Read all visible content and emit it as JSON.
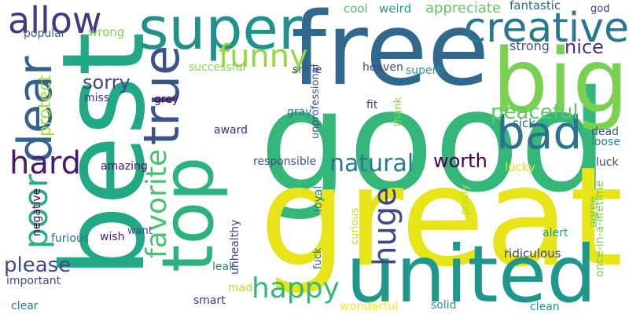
{
  "words": [
    {
      "text": "good",
      "color": "#35b779"
    },
    {
      "text": "great",
      "color": "#e7e419"
    },
    {
      "text": "best",
      "color": "#22a884"
    },
    {
      "text": "free",
      "color": "#31688e"
    },
    {
      "text": "big",
      "color": "#7ad151"
    },
    {
      "text": "top",
      "color": "#2db27d"
    },
    {
      "text": "united",
      "color": "#1f988b"
    },
    {
      "text": "super",
      "color": "#21918c"
    },
    {
      "text": "creative",
      "color": "#2a788e"
    },
    {
      "text": "true",
      "color": "#3b528b"
    },
    {
      "text": "dear",
      "color": "#33638d"
    },
    {
      "text": "allow",
      "color": "#453781"
    },
    {
      "text": "funny",
      "color": "#95d840"
    },
    {
      "text": "bad",
      "color": "#2c728e"
    },
    {
      "text": "hard",
      "color": "#481a6c"
    },
    {
      "text": "poor",
      "color": "#28ae80"
    },
    {
      "text": "favorite",
      "color": "#4ac16d"
    },
    {
      "text": "huge",
      "color": "#3e4989"
    },
    {
      "text": "natural",
      "color": "#2a788e"
    },
    {
      "text": "happy",
      "color": "#35b779"
    },
    {
      "text": "peaceful",
      "color": "#5ec962"
    },
    {
      "text": "please",
      "color": "#3e4989"
    },
    {
      "text": "protect",
      "color": "#a5db36"
    },
    {
      "text": "sorry",
      "color": "#414487"
    },
    {
      "text": "nice",
      "color": "#46337e"
    },
    {
      "text": "worth",
      "color": "#440154"
    },
    {
      "text": "appreciate",
      "color": "#5ec962"
    },
    {
      "text": "fantastic",
      "color": "#31688e"
    },
    {
      "text": "cool",
      "color": "#4ac16d"
    },
    {
      "text": "weird",
      "color": "#1f9e89"
    },
    {
      "text": "god",
      "color": "#46337e"
    },
    {
      "text": "wrong",
      "color": "#7ad151"
    },
    {
      "text": "popular",
      "color": "#31688e"
    },
    {
      "text": "strong",
      "color": "#3b528b"
    },
    {
      "text": "successful",
      "color": "#86d549"
    },
    {
      "text": "smile",
      "color": "#3b528b"
    },
    {
      "text": "heaven",
      "color": "#3e4989"
    },
    {
      "text": "superb",
      "color": "#1f9e89"
    },
    {
      "text": "miss",
      "color": "#472d7b"
    },
    {
      "text": "grey",
      "color": "#440154"
    },
    {
      "text": "unprofessional",
      "color": "#3b528b"
    },
    {
      "text": "fit",
      "color": "#3e4989"
    },
    {
      "text": "gray",
      "color": "#2a788e"
    },
    {
      "text": "thank",
      "color": "#86d549"
    },
    {
      "text": "sick",
      "color": "#31688e"
    },
    {
      "text": "dead",
      "color": "#3b528b"
    },
    {
      "text": "loose",
      "color": "#25848e"
    },
    {
      "text": "award",
      "color": "#482878"
    },
    {
      "text": "responsible",
      "color": "#3b528b"
    },
    {
      "text": "lucky",
      "color": "#d8e219"
    },
    {
      "text": "luck",
      "color": "#3e4989"
    },
    {
      "text": "amazing",
      "color": "#471063"
    },
    {
      "text": "negative",
      "color": "#440154"
    },
    {
      "text": "loyal",
      "color": "#2a788e"
    },
    {
      "text": "curious",
      "color": "#c2df23"
    },
    {
      "text": "pretty",
      "color": "#b5de2b"
    },
    {
      "text": "agree",
      "color": "#75d054"
    },
    {
      "text": "once-in-a-lifetime",
      "color": "#7ad151"
    },
    {
      "text": "alert",
      "color": "#1f9e89"
    },
    {
      "text": "furious",
      "color": "#2c728e"
    },
    {
      "text": "wish",
      "color": "#482173"
    },
    {
      "text": "want",
      "color": "#404688"
    },
    {
      "text": "unhealthy",
      "color": "#3e4989"
    },
    {
      "text": "leak",
      "color": "#26828e"
    },
    {
      "text": "fuck",
      "color": "#31688e"
    },
    {
      "text": "ridiculous",
      "color": "#414487"
    },
    {
      "text": "important",
      "color": "#3e4989"
    },
    {
      "text": "mad",
      "color": "#b5de2b"
    },
    {
      "text": "smart",
      "color": "#46337e"
    },
    {
      "text": "clear",
      "color": "#2a788e"
    },
    {
      "text": "wonderful",
      "color": "#fde725"
    },
    {
      "text": "solid",
      "color": "#1f9e89"
    },
    {
      "text": "clean",
      "color": "#1fa187"
    }
  ]
}
